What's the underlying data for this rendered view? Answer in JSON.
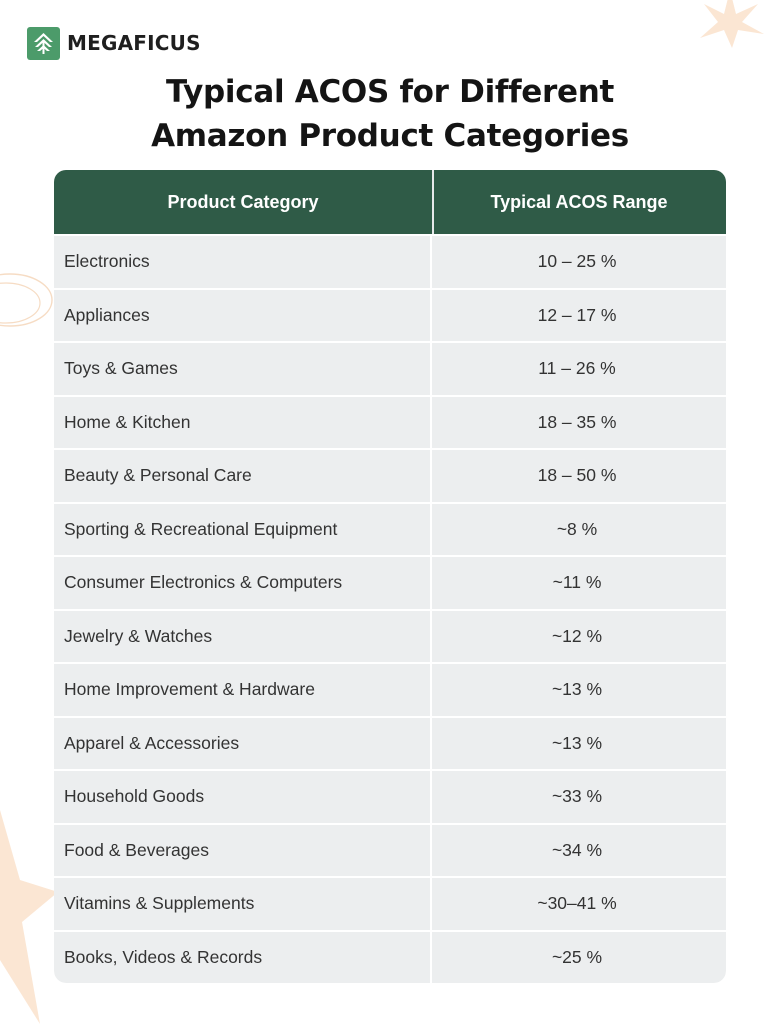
{
  "brand": {
    "name": "MEGAFICUS",
    "mark_color": "#4c9b6a",
    "icon": "ficus-leaf-icon"
  },
  "title": {
    "line1": "Typical ACOS for Different",
    "line2": "Amazon Product Categories"
  },
  "colors": {
    "header_bg": "#2f5b47",
    "row_bg": "#eceeef",
    "accent_decor": "#fbe6d3"
  },
  "table": {
    "headers": [
      "Product Category",
      "Typical ACOS Range"
    ],
    "rows": [
      {
        "category": "Electronics",
        "acos": "10 – 25 %"
      },
      {
        "category": "Appliances",
        "acos": "12 – 17 %"
      },
      {
        "category": "Toys & Games",
        "acos": "11 – 26 %"
      },
      {
        "category": "Home & Kitchen",
        "acos": "18 – 35 %"
      },
      {
        "category": "Beauty & Personal Care",
        "acos": "18 – 50 %"
      },
      {
        "category": "Sporting & Recreational Equipment",
        "acos": "~8 %"
      },
      {
        "category": "Consumer Electronics & Computers",
        "acos": "~11 %"
      },
      {
        "category": "Jewelry & Watches",
        "acos": "~12 %"
      },
      {
        "category": "Home Improvement & Hardware",
        "acos": "~13 %"
      },
      {
        "category": "Apparel & Accessories",
        "acos": "~13 %"
      },
      {
        "category": "Household Goods",
        "acos": "~33 %"
      },
      {
        "category": "Food & Beverages",
        "acos": "~34 %"
      },
      {
        "category": "Vitamins & Supplements",
        "acos": "~30–41 %"
      },
      {
        "category": "Books, Videos & Records",
        "acos": "~25 %"
      }
    ]
  }
}
